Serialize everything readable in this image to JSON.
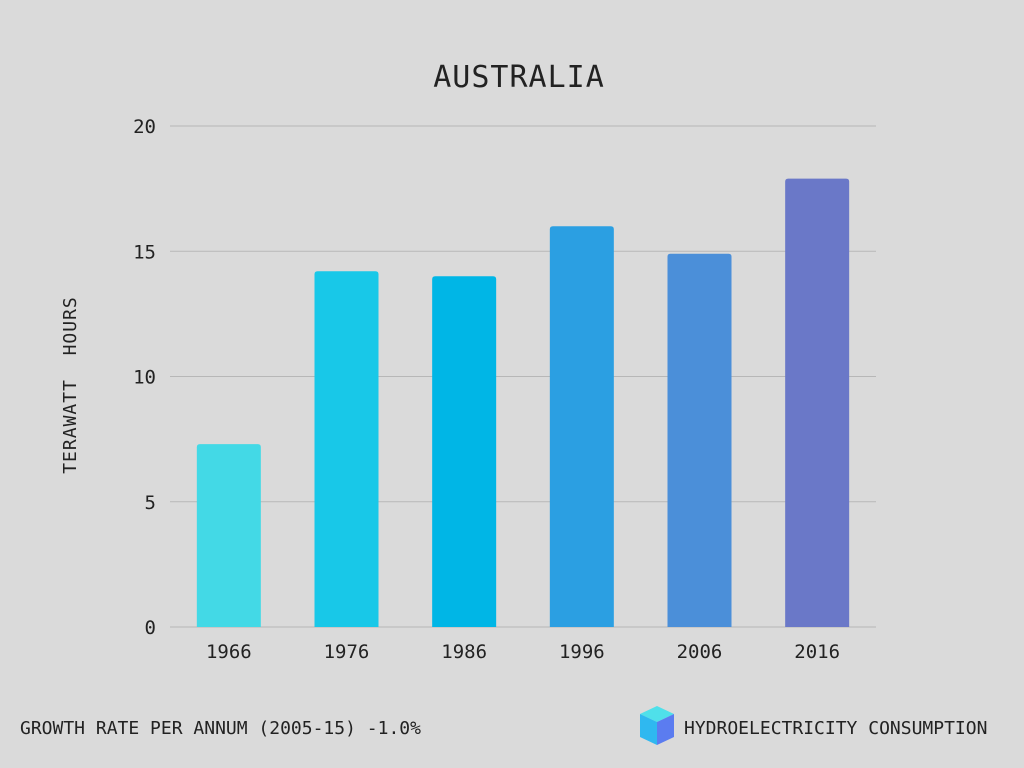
{
  "chart_data": {
    "type": "bar",
    "title": "AUSTRALIA",
    "xlabel": "",
    "ylabel": "TERAWATT  HOURS",
    "categories": [
      "1966",
      "1976",
      "1986",
      "1996",
      "2006",
      "2016"
    ],
    "values": [
      7.3,
      14.2,
      14.0,
      16.0,
      14.9,
      17.9
    ],
    "ylim": [
      0,
      20
    ],
    "yticks": [
      0,
      5,
      10,
      15,
      20
    ],
    "grid": true,
    "bar_colors": [
      "#43d9e6",
      "#18c8e8",
      "#00b6e6",
      "#2b9fe2",
      "#4b8fd9",
      "#6a78c8"
    ]
  },
  "footer": {
    "growth_rate": "GROWTH RATE PER ANNUM (2005-15) -1.0%",
    "brand_label": "HYDROELECTRICITY CONSUMPTION"
  },
  "logo": {
    "icon": "cube-icon",
    "colors": [
      "#4fe0ea",
      "#2fb8f0",
      "#5b7cf0"
    ]
  },
  "colors": {
    "background": "#dadada",
    "grid": "#b7b7b7",
    "text": "#222222"
  }
}
